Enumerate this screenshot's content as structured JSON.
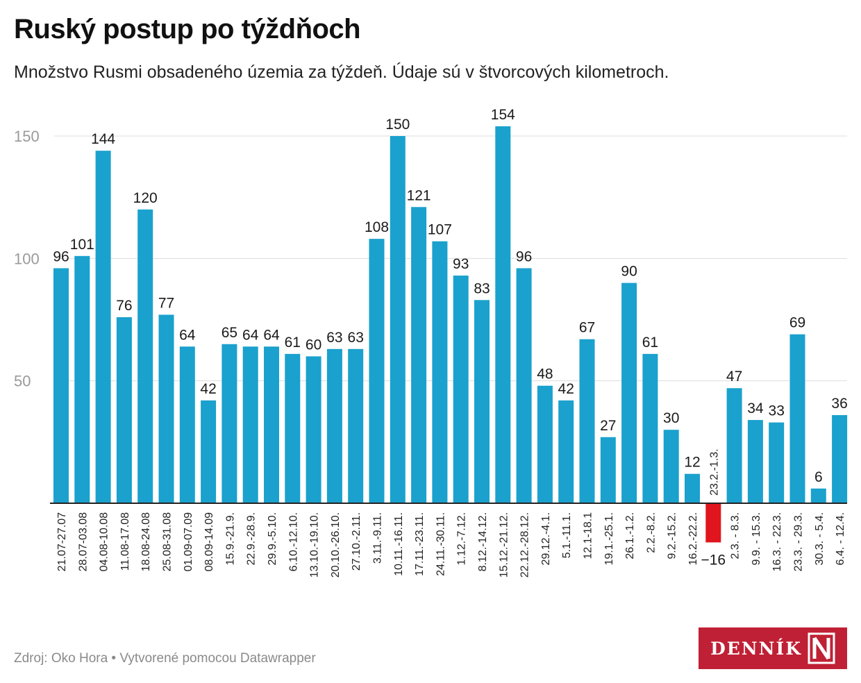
{
  "header": {
    "title": "Ruský postup po týždňoch",
    "subtitle": "Množstvo Rusmi obsadeného územia za týždeň. Údaje sú v štvorcových kilometroch."
  },
  "footer": {
    "source": "Zdroj: Oko Hora • Vytvorené pomocou Datawrapper"
  },
  "logo": {
    "text": "DENNÍK",
    "mark": "N"
  },
  "colors": {
    "positive": "#1aa1cd",
    "negative": "#e0151d",
    "grid": "#dddddd",
    "axis": "#222222",
    "tick_label": "#9a9a9a",
    "logo_bg": "#c02035"
  },
  "chart_data": {
    "type": "bar",
    "title": "Ruský postup po týždňoch",
    "subtitle": "Množstvo Rusmi obsadeného územia za týždeň. Údaje sú v štvorcových kilometroch.",
    "xlabel": "",
    "ylabel": "",
    "ylim": [
      -16,
      160
    ],
    "yticks": [
      50,
      100,
      150
    ],
    "grid": true,
    "legend": "none",
    "categories": [
      "21.07-27.07",
      "28.07-03.08",
      "04.08-10.08",
      "11.08-17.08",
      "18.08-24.08",
      "25.08-31.08",
      "01.09-07.09",
      "08.09-14.09",
      "15.9.-21.9.",
      "22.9.-28.9.",
      "29.9.-5.10.",
      "6.10.-12.10.",
      "13.10.-19.10.",
      "20.10.-26.10.",
      "27.10.-2.11.",
      "3.11.-9.11.",
      "10.11.-16.11.",
      "17.11.-23.11.",
      "24.11.-30.11.",
      "1.12.-7.12.",
      "8.12.-14.12.",
      "15.12.-21.12.",
      "22.12.-28.12.",
      "29.12.-4.1.",
      "5.1.-11.1.",
      "12.1-18.1",
      "19.1.-25.1.",
      "26.1.-1.2.",
      "2.2.-8.2.",
      "9.2.-15.2.",
      "16.2.-22.2.",
      "23.2.-1.3.",
      "2.3. - 8.3.",
      "9.9. - 15.3.",
      "16.3. - 22.3.",
      "23.3. - 29.3.",
      "30.3. - 5.4.",
      "6.4. - 12.4."
    ],
    "values": [
      96,
      101,
      144,
      76,
      120,
      77,
      64,
      42,
      65,
      64,
      64,
      61,
      60,
      63,
      63,
      108,
      150,
      121,
      107,
      93,
      83,
      154,
      96,
      48,
      42,
      67,
      27,
      90,
      61,
      30,
      12,
      -16,
      47,
      34,
      33,
      69,
      6,
      36
    ],
    "value_labels": [
      "96",
      "101",
      "144",
      "76",
      "120",
      "77",
      "64",
      "42",
      "65",
      "64",
      "64",
      "61",
      "60",
      "63",
      "63",
      "108",
      "150",
      "121",
      "107",
      "93",
      "83",
      "154",
      "96",
      "48",
      "42",
      "67",
      "27",
      "90",
      "61",
      "30",
      "12",
      "−16",
      "47",
      "34",
      "33",
      "69",
      "6",
      "36"
    ]
  }
}
